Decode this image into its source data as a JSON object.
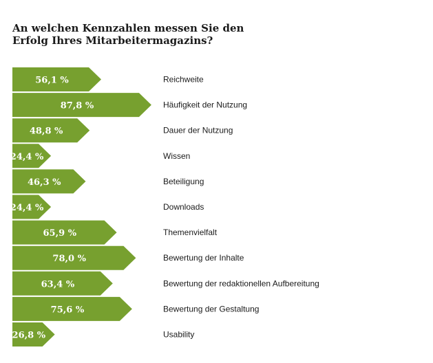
{
  "chart_data": {
    "type": "bar",
    "title": "An welchen Kennzahlen messen Sie den Erfolg Ihres Mitarbeitermagazins?",
    "categories": [
      "Reichweite",
      "Häufigkeit der Nutzung",
      "Dauer der Nutzung",
      "Wissen",
      "Beteiligung",
      "Downloads",
      "Themenvielfalt",
      "Bewertung der Inhalte",
      "Bewertung der redaktionellen Aufbereitung",
      "Bewertung der Gestaltung",
      "Usability"
    ],
    "values": [
      56.1,
      87.8,
      48.8,
      24.4,
      46.3,
      24.4,
      65.9,
      78.0,
      63.4,
      75.6,
      26.8
    ],
    "value_labels": [
      "56,1 %",
      "87,8 %",
      "48,8 %",
      "24,4 %",
      "46,3 %",
      "24,4 %",
      "65,9 %",
      "78,0 %",
      "63,4 %",
      "75,6 %",
      "26,8 %"
    ],
    "xlim": [
      0,
      100
    ],
    "bar_color": "#77a02f",
    "label_color": "#ffffff"
  }
}
